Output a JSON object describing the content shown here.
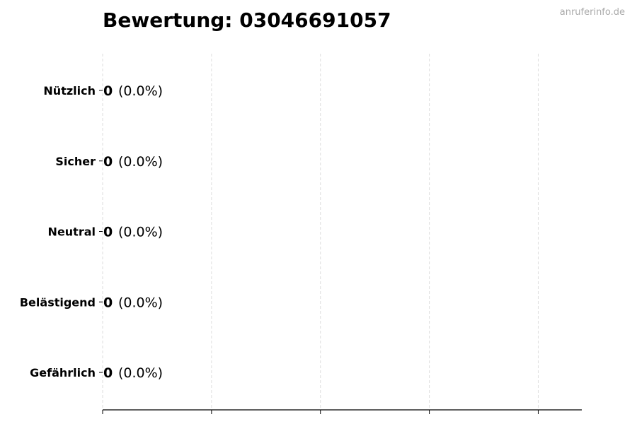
{
  "chart_data": {
    "type": "bar",
    "orientation": "horizontal",
    "title": "Bewertung: 03046691057",
    "categories": [
      "Nützlich",
      "Sicher",
      "Neutral",
      "Belästigend",
      "Gefährlich"
    ],
    "values": [
      0,
      0,
      0,
      0,
      0
    ],
    "data_labels": [
      {
        "count": "0",
        "percent": "(0.0%)"
      },
      {
        "count": "0",
        "percent": "(0.0%)"
      },
      {
        "count": "0",
        "percent": "(0.0%)"
      },
      {
        "count": "0",
        "percent": "(0.0%)"
      },
      {
        "count": "0",
        "percent": "(0.0%)"
      }
    ],
    "xlabel": "",
    "ylabel": "",
    "xlim": [
      0,
      4.4
    ],
    "grid": "vertical dashed",
    "colors": {
      "grid": "#dddddd",
      "axis": "#000000",
      "bar_edge": "#000000"
    }
  },
  "watermark": "anruferinfo.de"
}
